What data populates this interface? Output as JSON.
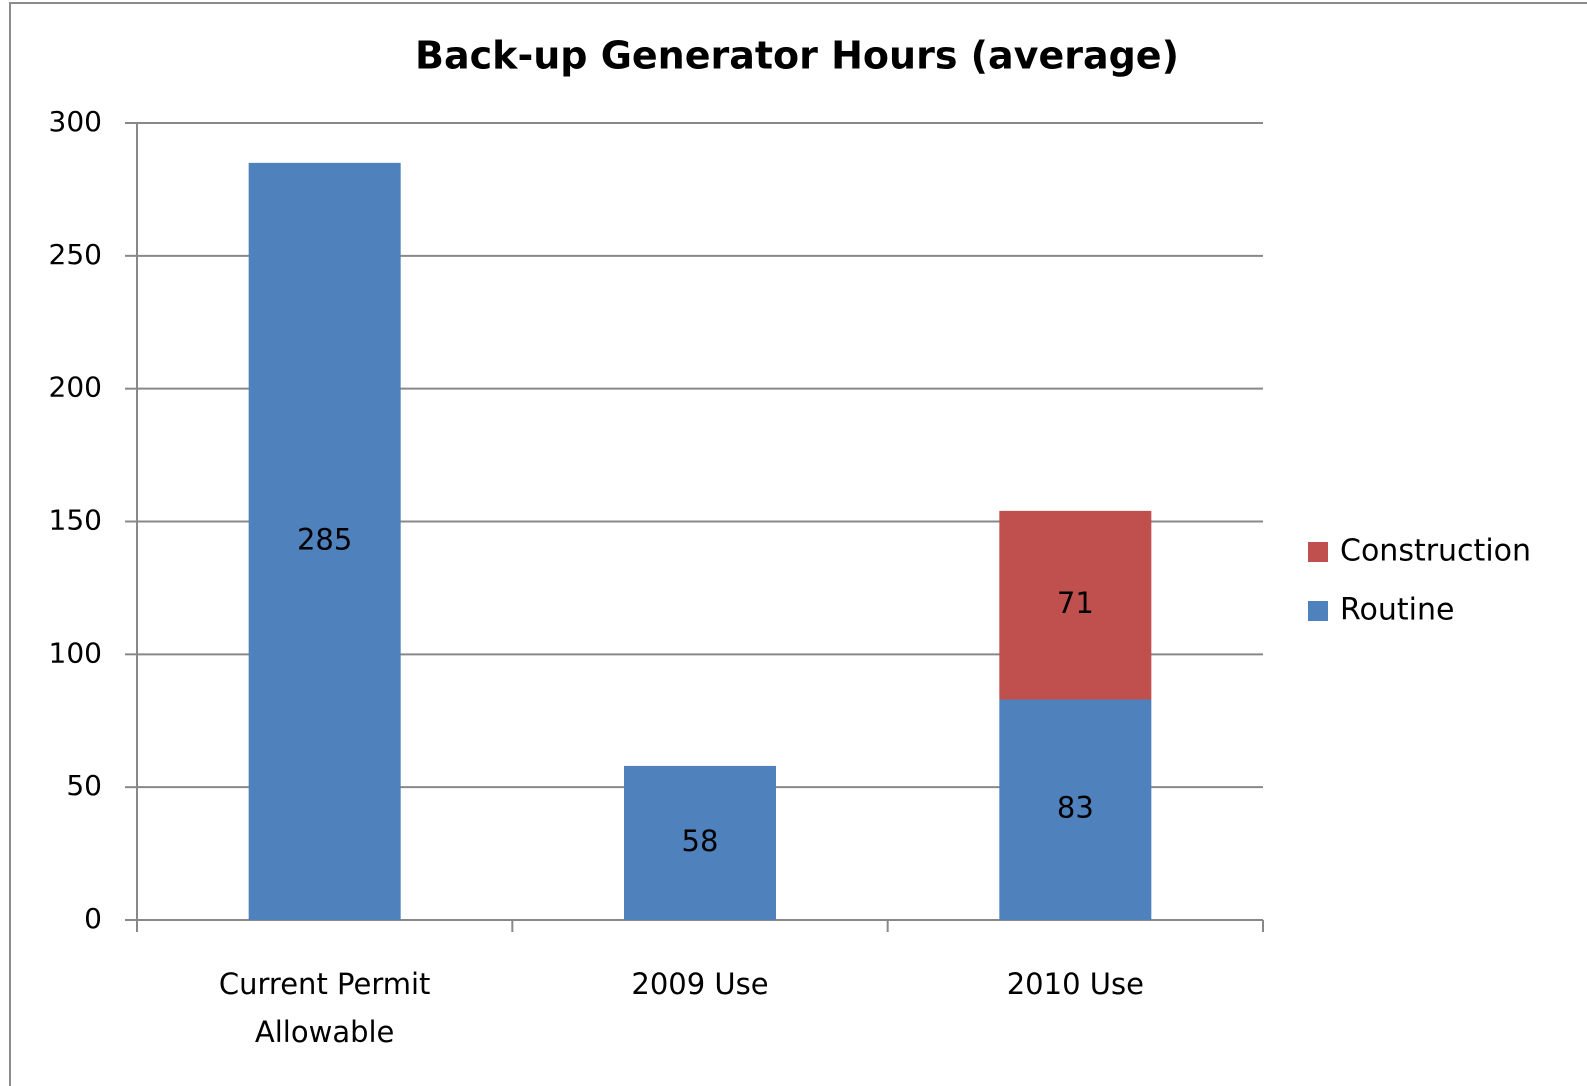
{
  "chart_data": {
    "type": "bar",
    "stacked": true,
    "title": "Back-up Generator Hours (average)",
    "categories": [
      "Current Permit Allowable",
      "2009 Use",
      "2010 Use"
    ],
    "series": [
      {
        "name": "Routine",
        "color": "#4f81bd",
        "values": [
          285,
          58,
          83
        ]
      },
      {
        "name": "Construction",
        "color": "#c0504d",
        "values": [
          null,
          null,
          71
        ]
      }
    ],
    "ylim": [
      0,
      300
    ],
    "yticks": [
      0,
      50,
      100,
      150,
      200,
      250,
      300
    ],
    "grid": true,
    "legend": "right"
  }
}
